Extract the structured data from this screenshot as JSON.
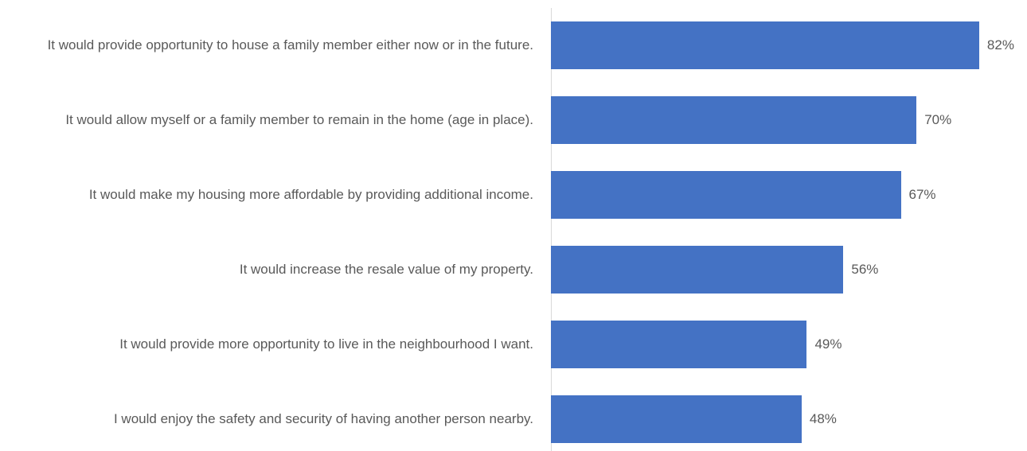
{
  "chart_data": {
    "type": "barh",
    "categories": [
      "It would provide opportunity to house a family member either now or in the future.",
      "It would allow myself or a family member to remain in the home (age in place).",
      "It would make my housing more affordable by providing additional income.",
      "It would increase the resale value of my property.",
      "It would provide more opportunity to live in the neighbourhood I want.",
      "I would enjoy the safety and security of having another person nearby."
    ],
    "values": [
      82,
      70,
      67,
      56,
      49,
      48
    ],
    "value_labels": [
      "82%",
      "70%",
      "67%",
      "56%",
      "49%",
      "48%"
    ],
    "color": "#4472c4"
  }
}
